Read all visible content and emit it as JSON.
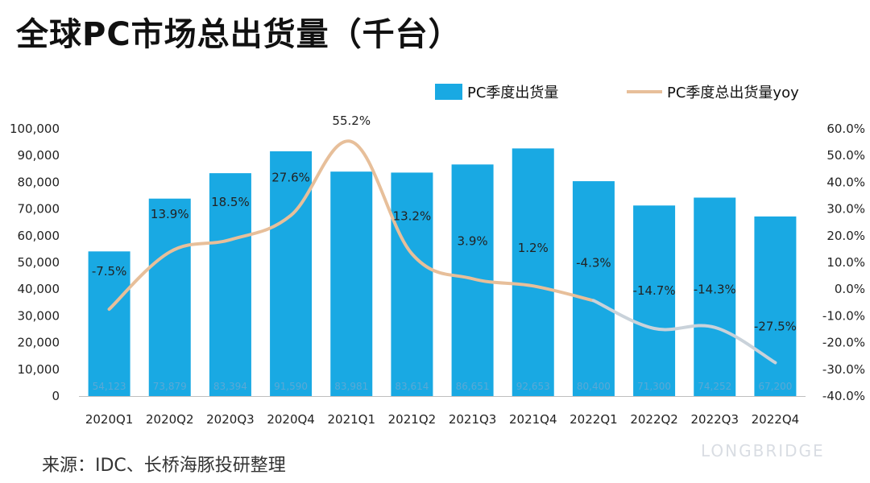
{
  "title": "全球PC市场总出货量（千台）",
  "source": "来源：IDC、长桥海豚投研整理",
  "watermark": "LONGBRIDGE",
  "colors": {
    "bar": "#19a9e3",
    "line": "#e7bf9a",
    "line_right": "#c9d2da"
  },
  "chart_data": {
    "type": "bar",
    "categories": [
      "2020Q1",
      "2020Q2",
      "2020Q3",
      "2020Q4",
      "2021Q1",
      "2021Q2",
      "2021Q3",
      "2021Q4",
      "2022Q1",
      "2022Q2",
      "2022Q3",
      "2022Q4"
    ],
    "series": [
      {
        "name": "PC季度出货量",
        "type": "bar",
        "axis": "left",
        "values": [
          54123,
          73879,
          83394,
          91590,
          83981,
          83614,
          86651,
          92653,
          80400,
          71300,
          74252,
          67200
        ],
        "labels": [
          "54,123",
          "73,879",
          "83,394",
          "91,590",
          "83,981",
          "83,614",
          "86,651",
          "92,653",
          "80,400",
          "71,300",
          "74,252",
          "67,200"
        ]
      },
      {
        "name": "PC季度总出货量yoy",
        "type": "line",
        "axis": "right",
        "values": [
          -7.5,
          13.9,
          18.5,
          27.6,
          55.2,
          13.2,
          3.9,
          1.2,
          -4.3,
          -14.7,
          -14.3,
          -27.5
        ],
        "labels": [
          "-7.5%",
          "13.9%",
          "18.5%",
          "27.6%",
          "55.2%",
          "13.2%",
          "3.9%",
          "1.2%",
          "-4.3%",
          "-14.7%",
          "-14.3%",
          "-27.5%"
        ]
      }
    ],
    "ylim": [
      0,
      100000
    ],
    "y2lim": [
      -40,
      60
    ],
    "y_ticks": [
      "0",
      "10,000",
      "20,000",
      "30,000",
      "40,000",
      "50,000",
      "60,000",
      "70,000",
      "80,000",
      "90,000",
      "100,000"
    ],
    "y2_ticks": [
      "-40.0%",
      "-30.0%",
      "-20.0%",
      "-10.0%",
      "0.0%",
      "10.0%",
      "20.0%",
      "30.0%",
      "40.0%",
      "50.0%",
      "60.0%"
    ],
    "legend_position": "top-right",
    "grid": false
  }
}
